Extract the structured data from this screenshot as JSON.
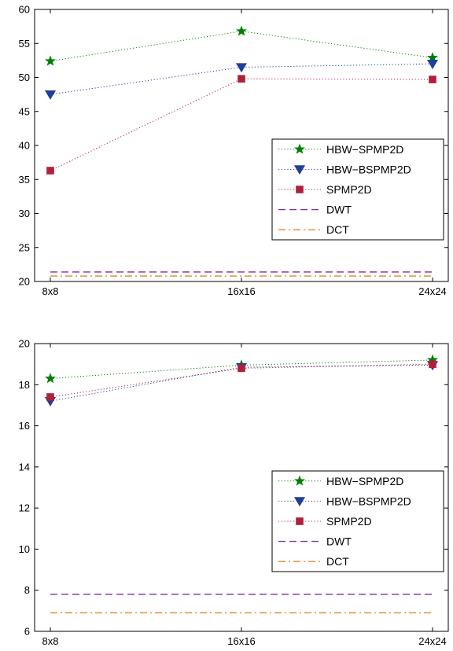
{
  "chart_data": [
    {
      "type": "line",
      "categories": [
        "8x8",
        "16x16",
        "24x24"
      ],
      "ylim": [
        20,
        60
      ],
      "yticks": [
        20,
        25,
        30,
        35,
        40,
        45,
        50,
        55,
        60
      ],
      "grid": false,
      "legend_position": "right-middle",
      "series": [
        {
          "name": "HBW−SPMP2D",
          "values": [
            52.4,
            56.8,
            52.9
          ],
          "color": "#008000",
          "marker": "star",
          "line": "dotted"
        },
        {
          "name": "HBW−BSPMP2D",
          "values": [
            47.5,
            51.5,
            52.0
          ],
          "color": "#1f3f99",
          "marker": "triangle-down",
          "line": "dotted"
        },
        {
          "name": "SPMP2D",
          "values": [
            36.3,
            49.8,
            49.7
          ],
          "color": "#b0203a",
          "marker": "square",
          "line": "dotted"
        },
        {
          "name": "DWT",
          "values": [
            21.4,
            21.4,
            21.4
          ],
          "color": "#7f2fa6",
          "marker": "none",
          "line": "dashed"
        },
        {
          "name": "DCT",
          "values": [
            20.8,
            20.8,
            20.8
          ],
          "color": "#e08a1e",
          "marker": "none",
          "line": "dashdot"
        }
      ]
    },
    {
      "type": "line",
      "categories": [
        "8x8",
        "16x16",
        "24x24"
      ],
      "ylim": [
        6,
        20
      ],
      "yticks": [
        6,
        8,
        10,
        12,
        14,
        16,
        18,
        20
      ],
      "grid": false,
      "legend_position": "right-middle",
      "series": [
        {
          "name": "HBW−SPMP2D",
          "values": [
            18.3,
            18.95,
            19.2
          ],
          "color": "#008000",
          "marker": "star",
          "line": "dotted"
        },
        {
          "name": "HBW−BSPMP2D",
          "values": [
            17.2,
            18.85,
            18.95
          ],
          "color": "#1f3f99",
          "marker": "triangle-down",
          "line": "dotted"
        },
        {
          "name": "SPMP2D",
          "values": [
            17.4,
            18.8,
            19.0
          ],
          "color": "#b0203a",
          "marker": "square",
          "line": "dotted"
        },
        {
          "name": "DWT",
          "values": [
            7.8,
            7.8,
            7.8
          ],
          "color": "#7f2fa6",
          "marker": "none",
          "line": "dashed"
        },
        {
          "name": "DCT",
          "values": [
            6.9,
            6.9,
            6.9
          ],
          "color": "#e08a1e",
          "marker": "none",
          "line": "dashdot"
        }
      ]
    }
  ]
}
